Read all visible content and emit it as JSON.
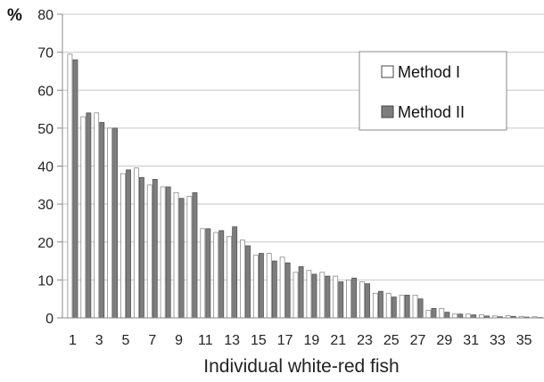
{
  "chart_data": {
    "type": "bar",
    "xlabel": "Individual white-red fish",
    "ylabel": "%",
    "ylim": [
      0,
      80
    ],
    "yticks": [
      0,
      10,
      20,
      30,
      40,
      50,
      60,
      70,
      80
    ],
    "xtick_labels": [
      "1",
      "3",
      "5",
      "7",
      "9",
      "11",
      "13",
      "15",
      "17",
      "19",
      "21",
      "23",
      "25",
      "27",
      "29",
      "31",
      "33",
      "35"
    ],
    "grid": "horizontal",
    "legend_position": "top-right",
    "categories": [
      "1",
      "2",
      "3",
      "4",
      "5",
      "6",
      "7",
      "8",
      "9",
      "10",
      "11",
      "12",
      "13",
      "14",
      "15",
      "16",
      "17",
      "18",
      "19",
      "20",
      "21",
      "22",
      "23",
      "24",
      "25",
      "26",
      "27",
      "28",
      "29",
      "30",
      "31",
      "32",
      "33",
      "34",
      "35",
      "36"
    ],
    "series": [
      {
        "name": "Method I",
        "color": "#ffffff",
        "values": [
          69.5,
          53,
          54,
          50,
          38,
          39.5,
          35,
          34.5,
          33,
          32,
          23.5,
          22.5,
          21.5,
          20.5,
          16.5,
          17,
          16,
          12,
          12.5,
          12,
          11,
          10,
          9.5,
          6.5,
          6.5,
          6,
          6,
          2,
          2.5,
          1,
          1,
          0.8,
          0.5,
          0.6,
          0.4,
          0.3
        ]
      },
      {
        "name": "Method II",
        "color": "#7d7d7d",
        "values": [
          68,
          54,
          51.5,
          50,
          39,
          37,
          36.5,
          34.5,
          31.5,
          33,
          23.5,
          23,
          24,
          19,
          17,
          15,
          14.5,
          13.5,
          11.5,
          11,
          9.5,
          10.5,
          9,
          7,
          5.5,
          6,
          5,
          2.5,
          1.5,
          1,
          0.8,
          0.5,
          0.3,
          0.4,
          0.2,
          0.1
        ]
      }
    ]
  }
}
